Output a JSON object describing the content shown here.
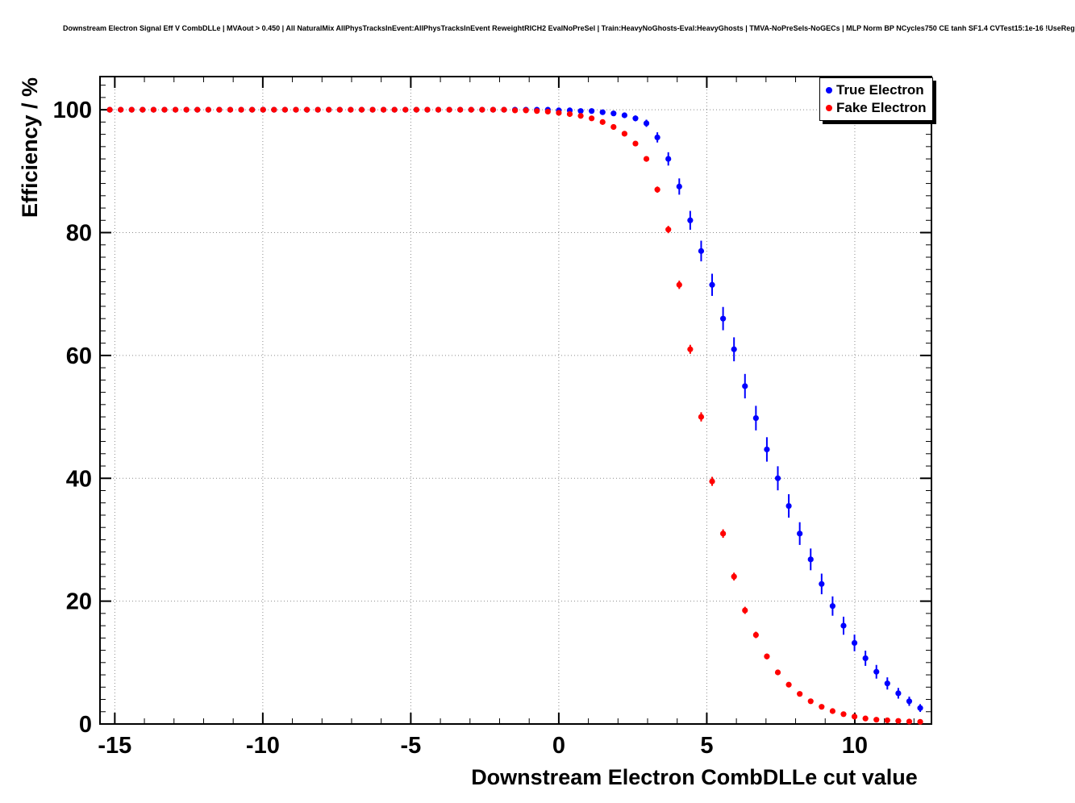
{
  "title": "Downstream Electron Signal Eff V CombDLLe | MVAout > 0.450 | All NaturalMix AllPhysTracksInEvent:AllPhysTracksInEvent ReweightRICH2 EvalNoPreSel | Train:HeavyNoGhosts-Eval:HeavyGhosts | TMVA-NoPreSels-NoGECs | MLP Norm BP NCycles750 CE tanh SF1.4 CVTest15:1e-16 !UseReg",
  "chart_data": {
    "type": "scatter",
    "title": "Downstream Electron Signal Eff V CombDLLe | MVAout > 0.450 | All NaturalMix AllPhysTracksInEvent:AllPhysTracksInEvent ReweightRICH2 EvalNoPreSel | Train:HeavyNoGhosts-Eval:HeavyGhosts | TMVA-NoPreSels-NoGECs | MLP Norm BP NCycles750 CE tanh SF1.4 CVTest15:1e-16 !UseReg",
    "xlabel": "Downstream Electron CombDLLe cut value",
    "ylabel": "Efficiency / %",
    "xlim": [
      -15.5,
      12.59
    ],
    "ylim": [
      0,
      105.4
    ],
    "x_major_ticks": [
      -15,
      -10,
      -5,
      0,
      5,
      10
    ],
    "y_major_ticks": [
      0,
      20,
      40,
      60,
      80,
      100
    ],
    "x_minor_step": 1,
    "y_minor_step": 2,
    "grid": true,
    "grid_style": "dotted",
    "frame_color": "#000000",
    "background_color": "#ffffff",
    "legend": {
      "position": "top-right",
      "entries": [
        {
          "label": "True Electron",
          "color": "#0000ff"
        },
        {
          "label": "Fake Electron",
          "color": "#ff0000"
        }
      ]
    },
    "series": [
      {
        "name": "True Electron",
        "color": "#0000ff",
        "marker": "circle",
        "error_scale": 0.04,
        "points": [
          [
            -15.17,
            100
          ],
          [
            -14.8,
            100
          ],
          [
            -14.43,
            100
          ],
          [
            -14.06,
            100
          ],
          [
            -13.69,
            100
          ],
          [
            -13.32,
            100
          ],
          [
            -12.95,
            100
          ],
          [
            -12.58,
            100
          ],
          [
            -12.21,
            100
          ],
          [
            -11.84,
            100
          ],
          [
            -11.47,
            100
          ],
          [
            -11.1,
            100
          ],
          [
            -10.73,
            100
          ],
          [
            -10.36,
            100
          ],
          [
            -9.99,
            100
          ],
          [
            -9.62,
            100
          ],
          [
            -9.25,
            100
          ],
          [
            -8.88,
            100
          ],
          [
            -8.51,
            100
          ],
          [
            -8.14,
            100
          ],
          [
            -7.77,
            100
          ],
          [
            -7.4,
            100
          ],
          [
            -7.03,
            100
          ],
          [
            -6.66,
            100
          ],
          [
            -6.29,
            100
          ],
          [
            -5.92,
            100
          ],
          [
            -5.55,
            100
          ],
          [
            -5.18,
            100
          ],
          [
            -4.81,
            100
          ],
          [
            -4.44,
            100
          ],
          [
            -4.07,
            100
          ],
          [
            -3.7,
            100
          ],
          [
            -3.33,
            100
          ],
          [
            -2.96,
            100
          ],
          [
            -2.59,
            100
          ],
          [
            -2.22,
            100
          ],
          [
            -1.85,
            100
          ],
          [
            -1.48,
            100
          ],
          [
            -1.11,
            100
          ],
          [
            -0.74,
            100
          ],
          [
            -0.37,
            100
          ],
          [
            0.0,
            99.9
          ],
          [
            0.37,
            99.9
          ],
          [
            0.74,
            99.8
          ],
          [
            1.11,
            99.8
          ],
          [
            1.48,
            99.6
          ],
          [
            1.85,
            99.4
          ],
          [
            2.22,
            99.1
          ],
          [
            2.59,
            98.6
          ],
          [
            2.96,
            97.8
          ],
          [
            3.33,
            95.5
          ],
          [
            3.7,
            92.0
          ],
          [
            4.07,
            87.5
          ],
          [
            4.44,
            82.0
          ],
          [
            4.81,
            77.0
          ],
          [
            5.18,
            71.5
          ],
          [
            5.55,
            66.0
          ],
          [
            5.92,
            61.0
          ],
          [
            6.29,
            55.0
          ],
          [
            6.66,
            49.8
          ],
          [
            7.03,
            44.7
          ],
          [
            7.4,
            40.0
          ],
          [
            7.77,
            35.5
          ],
          [
            8.14,
            31.0
          ],
          [
            8.51,
            26.8
          ],
          [
            8.88,
            22.8
          ],
          [
            9.25,
            19.2
          ],
          [
            9.62,
            16.0
          ],
          [
            9.99,
            13.2
          ],
          [
            10.36,
            10.7
          ],
          [
            10.73,
            8.5
          ],
          [
            11.1,
            6.6
          ],
          [
            11.47,
            5.0
          ],
          [
            11.84,
            3.7
          ],
          [
            12.21,
            2.6
          ]
        ]
      },
      {
        "name": "Fake Electron",
        "color": "#ff0000",
        "marker": "circle",
        "error_scale": 0.015,
        "points": [
          [
            -15.17,
            100
          ],
          [
            -14.8,
            100
          ],
          [
            -14.43,
            100
          ],
          [
            -14.06,
            100
          ],
          [
            -13.69,
            100
          ],
          [
            -13.32,
            100
          ],
          [
            -12.95,
            100
          ],
          [
            -12.58,
            100
          ],
          [
            -12.21,
            100
          ],
          [
            -11.84,
            100
          ],
          [
            -11.47,
            100
          ],
          [
            -11.1,
            100
          ],
          [
            -10.73,
            100
          ],
          [
            -10.36,
            100
          ],
          [
            -9.99,
            100
          ],
          [
            -9.62,
            100
          ],
          [
            -9.25,
            100
          ],
          [
            -8.88,
            100
          ],
          [
            -8.51,
            100
          ],
          [
            -8.14,
            100
          ],
          [
            -7.77,
            100
          ],
          [
            -7.4,
            100
          ],
          [
            -7.03,
            100
          ],
          [
            -6.66,
            100
          ],
          [
            -6.29,
            100
          ],
          [
            -5.92,
            100
          ],
          [
            -5.55,
            100
          ],
          [
            -5.18,
            100
          ],
          [
            -4.81,
            100
          ],
          [
            -4.44,
            100
          ],
          [
            -4.07,
            100
          ],
          [
            -3.7,
            100
          ],
          [
            -3.33,
            100
          ],
          [
            -2.96,
            100
          ],
          [
            -2.59,
            100
          ],
          [
            -2.22,
            100
          ],
          [
            -1.85,
            100
          ],
          [
            -1.48,
            99.9
          ],
          [
            -1.11,
            99.9
          ],
          [
            -0.74,
            99.8
          ],
          [
            -0.37,
            99.7
          ],
          [
            0.0,
            99.5
          ],
          [
            0.37,
            99.3
          ],
          [
            0.74,
            99.0
          ],
          [
            1.11,
            98.6
          ],
          [
            1.48,
            98.0
          ],
          [
            1.85,
            97.2
          ],
          [
            2.22,
            96.1
          ],
          [
            2.59,
            94.5
          ],
          [
            2.96,
            92.0
          ],
          [
            3.33,
            87.0
          ],
          [
            3.7,
            80.5
          ],
          [
            4.07,
            71.5
          ],
          [
            4.44,
            61.0
          ],
          [
            4.81,
            50.0
          ],
          [
            5.18,
            39.5
          ],
          [
            5.55,
            31.0
          ],
          [
            5.92,
            24.0
          ],
          [
            6.29,
            18.5
          ],
          [
            6.66,
            14.5
          ],
          [
            7.03,
            11.0
          ],
          [
            7.4,
            8.4
          ],
          [
            7.77,
            6.4
          ],
          [
            8.14,
            4.9
          ],
          [
            8.51,
            3.7
          ],
          [
            8.88,
            2.8
          ],
          [
            9.25,
            2.1
          ],
          [
            9.62,
            1.6
          ],
          [
            9.99,
            1.2
          ],
          [
            10.36,
            0.9
          ],
          [
            10.73,
            0.7
          ],
          [
            11.1,
            0.6
          ],
          [
            11.47,
            0.5
          ],
          [
            11.84,
            0.4
          ],
          [
            12.21,
            0.35
          ]
        ]
      }
    ]
  }
}
